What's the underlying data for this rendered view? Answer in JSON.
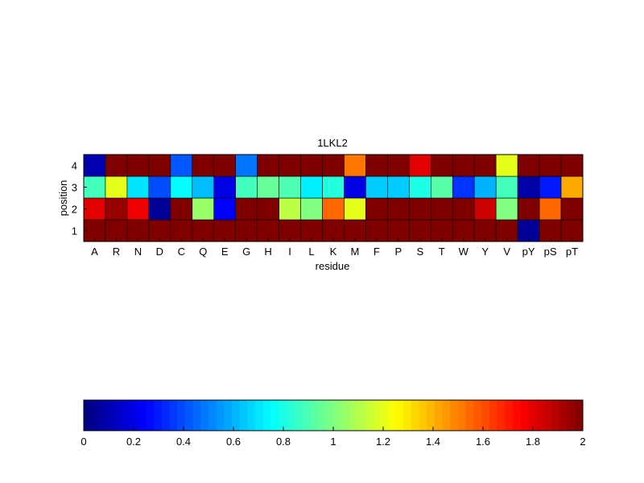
{
  "chart_data": {
    "type": "heatmap",
    "title": "1LKL2",
    "xlabel": "residue",
    "ylabel": "position",
    "x_categories": [
      "A",
      "R",
      "N",
      "D",
      "C",
      "Q",
      "E",
      "G",
      "H",
      "I",
      "L",
      "K",
      "M",
      "F",
      "P",
      "S",
      "T",
      "W",
      "Y",
      "V",
      "pY",
      "pS",
      "pT"
    ],
    "y_categories": [
      "1",
      "2",
      "3",
      "4"
    ],
    "values": [
      [
        2.0,
        2.0,
        2.0,
        2.0,
        2.0,
        2.0,
        2.0,
        2.0,
        2.0,
        2.0,
        2.0,
        2.0,
        2.0,
        2.0,
        2.0,
        2.0,
        2.0,
        2.0,
        2.0,
        2.0,
        0.05,
        2.0,
        2.0
      ],
      [
        1.8,
        1.95,
        1.78,
        0.05,
        2.0,
        1.05,
        0.25,
        2.0,
        2.0,
        1.12,
        1.0,
        1.55,
        1.2,
        2.0,
        2.0,
        2.0,
        2.0,
        2.0,
        1.85,
        1.0,
        2.0,
        1.55,
        2.0
      ],
      [
        0.88,
        1.2,
        0.7,
        0.4,
        0.75,
        0.62,
        0.2,
        0.88,
        0.95,
        0.9,
        0.72,
        0.82,
        0.2,
        0.65,
        0.65,
        0.8,
        0.92,
        0.35,
        0.6,
        0.88,
        0.08,
        0.3,
        1.42
      ],
      [
        0.1,
        2.0,
        2.0,
        2.0,
        0.42,
        2.0,
        2.0,
        0.48,
        2.0,
        2.0,
        2.0,
        2.0,
        1.52,
        2.0,
        2.0,
        1.8,
        2.0,
        2.0,
        2.0,
        1.2,
        2.0,
        2.0,
        2.0
      ]
    ],
    "colormap": "jet",
    "clim": [
      0,
      2
    ],
    "colorbar": {
      "location": "bottom",
      "ticks": [
        0,
        0.2,
        0.4,
        0.6,
        0.8,
        1,
        1.2,
        1.4,
        1.6,
        1.8,
        2
      ],
      "tick_labels": [
        "0",
        "0.2",
        "0.4",
        "0.6",
        "0.8",
        "1",
        "1.2",
        "1.4",
        "1.6",
        "1.8",
        "2"
      ]
    },
    "grid": true
  }
}
